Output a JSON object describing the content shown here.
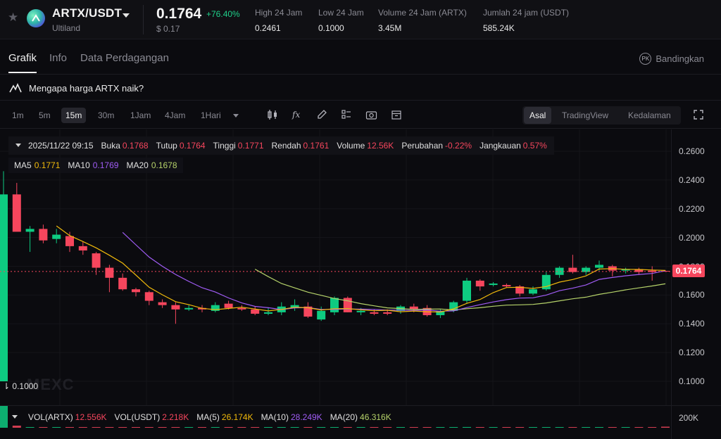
{
  "header": {
    "pair": "ARTX/USDT",
    "project": "Ultiland",
    "price": "0.1764",
    "change": "+76.40%",
    "usd_price": "$ 0.17",
    "stats": [
      {
        "label": "High 24 Jam",
        "value": "0.2461"
      },
      {
        "label": "Low 24 Jam",
        "value": "0.1000"
      },
      {
        "label": "Volume 24 Jam (ARTX)",
        "value": "3.45M"
      },
      {
        "label": "Jumlah 24 jam (USDT)",
        "value": "585.24K"
      }
    ]
  },
  "tabs": [
    "Grafik",
    "Info",
    "Data Perdagangan"
  ],
  "compare_label": "Bandingkan",
  "compare_badge": "PK",
  "why_text": "Mengapa harga ARTX naik?",
  "toolbar": {
    "timeframes": [
      "1m",
      "5m",
      "15m",
      "30m",
      "1Jam",
      "4Jam",
      "1Hari"
    ],
    "active_timeframe": "15m",
    "view_modes": [
      "Asal",
      "TradingView",
      "Kedalaman"
    ],
    "active_view": "Asal"
  },
  "ohlc": {
    "datetime": "2025/11/22 09:15",
    "open_label": "Buka",
    "open": "0.1768",
    "close_label": "Tutup",
    "close": "0.1764",
    "high_label": "Tinggi",
    "high": "0.1771",
    "low_label": "Rendah",
    "low": "0.1761",
    "volume_label": "Volume",
    "volume": "12.56K",
    "change_label": "Perubahan",
    "change": "-0.22%",
    "range_label": "Jangkauan",
    "range": "0.57%"
  },
  "ma": {
    "ma5_label": "MA5",
    "ma5": "0.1771",
    "ma10_label": "MA10",
    "ma10": "0.1769",
    "ma20_label": "MA20",
    "ma20": "0.1678"
  },
  "volume_legend": {
    "vol_artx_label": "VOL(ARTX)",
    "vol_artx": "12.556K",
    "vol_usdt_label": "VOL(USDT)",
    "vol_usdt": "2.218K",
    "ma5_label": "MA(5)",
    "ma5": "26.174K",
    "ma10_label": "MA(10)",
    "ma10": "28.249K",
    "ma20_label": "MA(20)",
    "ma20": "46.316K"
  },
  "low_marker": "0.1000",
  "watermark": "MEXC",
  "current_price_tag": "0.1764",
  "volume_axis_label": "200K",
  "colors": {
    "up": "#0ecb81",
    "down": "#f6465d",
    "ma5": "#f0b90b",
    "ma10": "#a05cf5",
    "ma20": "#b6d36a"
  },
  "chart_data": {
    "type": "candlestick",
    "y_ticks": [
      "0.2600",
      "0.2400",
      "0.2200",
      "0.2000",
      "0.1800",
      "0.1600",
      "0.1400",
      "0.1200",
      "0.1000"
    ],
    "ylim": [
      0.095,
      0.27
    ],
    "candles": [
      {
        "o": 0.1,
        "h": 0.2461,
        "l": 0.1,
        "c": 0.23
      },
      {
        "o": 0.23,
        "h": 0.238,
        "l": 0.205,
        "c": 0.204
      },
      {
        "o": 0.204,
        "h": 0.208,
        "l": 0.19,
        "c": 0.206
      },
      {
        "o": 0.206,
        "h": 0.209,
        "l": 0.196,
        "c": 0.198
      },
      {
        "o": 0.199,
        "h": 0.206,
        "l": 0.196,
        "c": 0.202
      },
      {
        "o": 0.201,
        "h": 0.204,
        "l": 0.19,
        "c": 0.194
      },
      {
        "o": 0.194,
        "h": 0.197,
        "l": 0.188,
        "c": 0.191
      },
      {
        "o": 0.189,
        "h": 0.19,
        "l": 0.174,
        "c": 0.179
      },
      {
        "o": 0.179,
        "h": 0.181,
        "l": 0.162,
        "c": 0.172
      },
      {
        "o": 0.172,
        "h": 0.175,
        "l": 0.163,
        "c": 0.164
      },
      {
        "o": 0.164,
        "h": 0.165,
        "l": 0.159,
        "c": 0.162
      },
      {
        "o": 0.162,
        "h": 0.163,
        "l": 0.153,
        "c": 0.156
      },
      {
        "o": 0.155,
        "h": 0.157,
        "l": 0.151,
        "c": 0.153
      },
      {
        "o": 0.153,
        "h": 0.155,
        "l": 0.14,
        "c": 0.15
      },
      {
        "o": 0.15,
        "h": 0.153,
        "l": 0.149,
        "c": 0.151
      },
      {
        "o": 0.151,
        "h": 0.153,
        "l": 0.148,
        "c": 0.15
      },
      {
        "o": 0.149,
        "h": 0.155,
        "l": 0.148,
        "c": 0.153
      },
      {
        "o": 0.154,
        "h": 0.156,
        "l": 0.15,
        "c": 0.151
      },
      {
        "o": 0.151,
        "h": 0.153,
        "l": 0.149,
        "c": 0.15
      },
      {
        "o": 0.15,
        "h": 0.152,
        "l": 0.146,
        "c": 0.147
      },
      {
        "o": 0.147,
        "h": 0.151,
        "l": 0.146,
        "c": 0.148
      },
      {
        "o": 0.148,
        "h": 0.155,
        "l": 0.146,
        "c": 0.152
      },
      {
        "o": 0.151,
        "h": 0.157,
        "l": 0.149,
        "c": 0.153
      },
      {
        "o": 0.152,
        "h": 0.155,
        "l": 0.144,
        "c": 0.145
      },
      {
        "o": 0.143,
        "h": 0.152,
        "l": 0.142,
        "c": 0.149
      },
      {
        "o": 0.148,
        "h": 0.159,
        "l": 0.146,
        "c": 0.158
      },
      {
        "o": 0.158,
        "h": 0.159,
        "l": 0.148,
        "c": 0.148
      },
      {
        "o": 0.148,
        "h": 0.151,
        "l": 0.146,
        "c": 0.149
      },
      {
        "o": 0.148,
        "h": 0.15,
        "l": 0.146,
        "c": 0.147
      },
      {
        "o": 0.148,
        "h": 0.15,
        "l": 0.146,
        "c": 0.147
      },
      {
        "o": 0.149,
        "h": 0.153,
        "l": 0.147,
        "c": 0.152
      },
      {
        "o": 0.152,
        "h": 0.154,
        "l": 0.148,
        "c": 0.15
      },
      {
        "o": 0.151,
        "h": 0.153,
        "l": 0.145,
        "c": 0.146
      },
      {
        "o": 0.146,
        "h": 0.15,
        "l": 0.144,
        "c": 0.149
      },
      {
        "o": 0.149,
        "h": 0.156,
        "l": 0.148,
        "c": 0.155
      },
      {
        "o": 0.156,
        "h": 0.172,
        "l": 0.154,
        "c": 0.17
      },
      {
        "o": 0.17,
        "h": 0.171,
        "l": 0.163,
        "c": 0.166
      },
      {
        "o": 0.167,
        "h": 0.169,
        "l": 0.166,
        "c": 0.168
      },
      {
        "o": 0.167,
        "h": 0.168,
        "l": 0.165,
        "c": 0.166
      },
      {
        "o": 0.166,
        "h": 0.167,
        "l": 0.159,
        "c": 0.161
      },
      {
        "o": 0.161,
        "h": 0.166,
        "l": 0.16,
        "c": 0.164
      },
      {
        "o": 0.164,
        "h": 0.176,
        "l": 0.163,
        "c": 0.174
      },
      {
        "o": 0.174,
        "h": 0.18,
        "l": 0.172,
        "c": 0.179
      },
      {
        "o": 0.179,
        "h": 0.188,
        "l": 0.175,
        "c": 0.176
      },
      {
        "o": 0.176,
        "h": 0.18,
        "l": 0.174,
        "c": 0.179
      },
      {
        "o": 0.179,
        "h": 0.184,
        "l": 0.177,
        "c": 0.181
      },
      {
        "o": 0.18,
        "h": 0.181,
        "l": 0.173,
        "c": 0.177
      },
      {
        "o": 0.177,
        "h": 0.179,
        "l": 0.175,
        "c": 0.178
      },
      {
        "o": 0.178,
        "h": 0.179,
        "l": 0.174,
        "c": 0.176
      },
      {
        "o": 0.177,
        "h": 0.18,
        "l": 0.17,
        "c": 0.176
      },
      {
        "o": 0.1768,
        "h": 0.1771,
        "l": 0.1761,
        "c": 0.1764
      }
    ],
    "ma5": [
      null,
      null,
      null,
      null,
      0.2081,
      0.2014,
      0.1972,
      0.1928,
      0.1877,
      0.1822,
      0.1739,
      0.1654,
      0.1602,
      0.1554,
      0.1533,
      0.1508,
      0.1498,
      0.1507,
      0.1515,
      0.1503,
      0.149,
      0.15,
      0.1515,
      0.1512,
      0.1496,
      0.1505,
      0.1506,
      0.1497,
      0.1491,
      0.1494,
      0.1484,
      0.1489,
      0.1484,
      0.1482,
      0.1504,
      0.1542,
      0.1569,
      0.1617,
      0.1652,
      0.1654,
      0.1646,
      0.1659,
      0.169,
      0.1708,
      0.1733,
      0.1781,
      0.1784,
      0.1779,
      0.1778,
      0.1774,
      0.1771
    ],
    "ma10": [
      null,
      null,
      null,
      null,
      null,
      null,
      null,
      null,
      null,
      0.2036,
      0.1949,
      0.1864,
      0.18,
      0.1743,
      0.1695,
      0.1651,
      0.1621,
      0.158,
      0.1545,
      0.1521,
      0.1512,
      0.1499,
      0.1511,
      0.1513,
      0.15,
      0.15,
      0.1503,
      0.1502,
      0.15,
      0.1495,
      0.1495,
      0.1492,
      0.1496,
      0.1488,
      0.149,
      0.1513,
      0.1533,
      0.1552,
      0.1568,
      0.1579,
      0.1581,
      0.16,
      0.163,
      0.1648,
      0.167,
      0.1709,
      0.1722,
      0.1734,
      0.1743,
      0.175,
      0.1769
    ],
    "ma20": [
      null,
      null,
      null,
      null,
      null,
      null,
      null,
      null,
      null,
      null,
      null,
      null,
      null,
      null,
      null,
      null,
      null,
      null,
      null,
      0.178,
      0.1728,
      0.168,
      0.165,
      0.162,
      0.1598,
      0.1576,
      0.156,
      0.154,
      0.1525,
      0.1511,
      0.1506,
      0.15,
      0.1502,
      0.1503,
      0.1496,
      0.1505,
      0.1512,
      0.1522,
      0.153,
      0.1532,
      0.1535,
      0.1545,
      0.156,
      0.1574,
      0.1585,
      0.1605,
      0.162,
      0.1636,
      0.165,
      0.1663,
      0.1678
    ],
    "volumes": [
      260,
      25,
      6,
      4,
      4,
      5,
      3,
      3,
      6,
      4,
      3,
      4,
      3,
      5,
      3,
      3,
      4,
      3,
      3,
      4,
      3,
      4,
      4,
      6,
      5,
      7,
      6,
      4,
      3,
      3,
      4,
      3,
      3,
      4,
      6,
      9,
      5,
      3,
      3,
      5,
      4,
      7,
      6,
      8,
      5,
      4,
      4,
      3,
      3,
      6,
      12.556
    ],
    "volume_ylim": [
      0,
      260
    ]
  }
}
